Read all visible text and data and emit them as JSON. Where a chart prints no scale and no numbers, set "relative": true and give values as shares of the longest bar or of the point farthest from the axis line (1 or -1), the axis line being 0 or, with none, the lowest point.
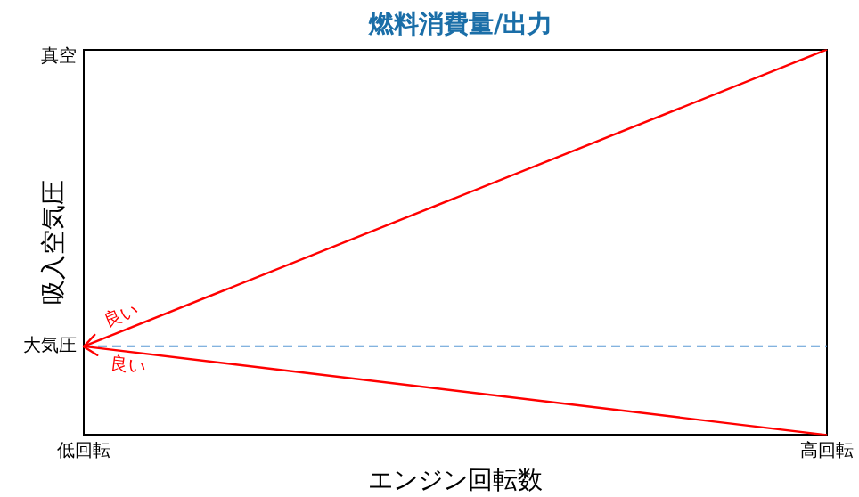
{
  "chart_data": {
    "type": "line",
    "title": "燃料消費量/出力",
    "xlabel": "エンジン回転数",
    "ylabel": "吸入空気圧",
    "categories": [
      "低回転",
      "高回転"
    ],
    "relative": true,
    "series": [
      {
        "color": "#ff0000",
        "values": [
          0.23,
          1
        ]
      },
      {
        "color": "#ff0000",
        "values": [
          0.23,
          0
        ]
      }
    ],
    "ref_lines": [
      {
        "axis": "y",
        "value": 0.23,
        "label": "大気圧",
        "color": "#5b9bd5",
        "line_style": "dashed"
      }
    ],
    "annotations": [
      "真空",
      {
        "text": "良い",
        "x": "低回転",
        "y": 0.23
      },
      {
        "text": "良い",
        "x": "低回転",
        "y": 0.23
      }
    ]
  }
}
